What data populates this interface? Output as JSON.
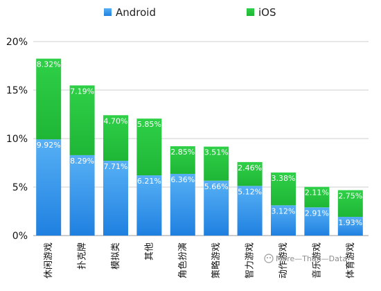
{
  "chart_data": {
    "type": "bar",
    "stacked": true,
    "categories": [
      "休闲游戏",
      "扑克牌",
      "模拟类",
      "其他",
      "角色扮演",
      "策略游戏",
      "智力游戏",
      "动作游戏",
      "音乐游戏",
      "体育游戏"
    ],
    "series": [
      {
        "name": "Android",
        "color": "#2d8fe6",
        "values": [
          9.92,
          8.29,
          7.71,
          6.21,
          6.36,
          5.66,
          5.12,
          3.12,
          2.91,
          1.93
        ],
        "labels": [
          "9.92%",
          "8.29%",
          "7.71%",
          "6.21%",
          "6.36%",
          "5.66%",
          "5.12%",
          "3.12%",
          "2.91%",
          "1.93%"
        ]
      },
      {
        "name": "iOS",
        "color": "#22bb3a",
        "values": [
          8.32,
          7.19,
          4.7,
          5.85,
          2.85,
          3.51,
          2.46,
          3.38,
          2.11,
          2.75
        ],
        "labels": [
          "8.32%",
          "7.19%",
          "4.70%",
          "5.85%",
          "2.85%",
          "3.51%",
          "2.46%",
          "3.38%",
          "2.11%",
          "2.75%"
        ]
      }
    ],
    "yticks": [
      0,
      5,
      10,
      15,
      20
    ],
    "ytick_labels": [
      "0%",
      "5%",
      "10%",
      "15%",
      "20%"
    ],
    "ylim": [
      0,
      20
    ],
    "grid": true,
    "legend_position": "top-center",
    "title": "",
    "xlabel": "",
    "ylabel": ""
  },
  "watermark": {
    "text": "More—Than—Data"
  }
}
